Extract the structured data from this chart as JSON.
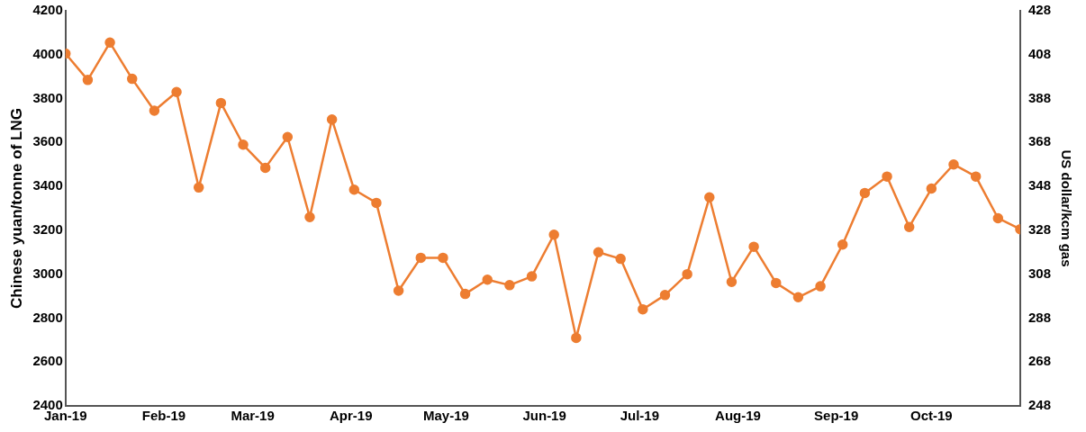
{
  "chart_data": {
    "type": "line",
    "ylabel": "Chinese yuan/tonne of LNG",
    "y2label": "US dollar/kcm gas",
    "x": [
      "2019-01-01",
      "2019-01-08",
      "2019-01-15",
      "2019-01-22",
      "2019-01-29",
      "2019-02-05",
      "2019-02-12",
      "2019-02-19",
      "2019-02-26",
      "2019-03-05",
      "2019-03-12",
      "2019-03-19",
      "2019-03-26",
      "2019-04-02",
      "2019-04-09",
      "2019-04-16",
      "2019-04-23",
      "2019-04-30",
      "2019-05-07",
      "2019-05-14",
      "2019-05-21",
      "2019-05-28",
      "2019-06-04",
      "2019-06-11",
      "2019-06-18",
      "2019-06-25",
      "2019-07-02",
      "2019-07-09",
      "2019-07-16",
      "2019-07-23",
      "2019-07-30",
      "2019-08-06",
      "2019-08-13",
      "2019-08-20",
      "2019-08-27",
      "2019-09-03",
      "2019-09-10",
      "2019-09-17",
      "2019-09-24",
      "2019-10-01",
      "2019-10-08",
      "2019-10-15",
      "2019-10-22",
      "2019-10-29"
    ],
    "series": [
      {
        "color": "#ed7d31",
        "values": [
          4005,
          3885,
          4055,
          3890,
          3745,
          3830,
          3395,
          3780,
          3590,
          3485,
          3625,
          3260,
          3705,
          3385,
          3325,
          2925,
          3075,
          3075,
          2910,
          2975,
          2950,
          2990,
          3180,
          2710,
          3100,
          3070,
          2840,
          2905,
          3000,
          3350,
          2965,
          3125,
          2960,
          2895,
          2945,
          3135,
          3370,
          3445,
          3215,
          3390,
          3500,
          3445,
          3255,
          3205
        ]
      }
    ],
    "xlim": [
      "2019-01-01",
      "2019-10-29"
    ],
    "xticks": [
      {
        "value": "2019-01-01",
        "label": "Jan-19"
      },
      {
        "value": "2019-02-01",
        "label": "Feb-19"
      },
      {
        "value": "2019-03-01",
        "label": "Mar-19"
      },
      {
        "value": "2019-04-01",
        "label": "Apr-19"
      },
      {
        "value": "2019-05-01",
        "label": "May-19"
      },
      {
        "value": "2019-06-01",
        "label": "Jun-19"
      },
      {
        "value": "2019-07-01",
        "label": "Jul-19"
      },
      {
        "value": "2019-08-01",
        "label": "Aug-19"
      },
      {
        "value": "2019-09-01",
        "label": "Sep-19"
      },
      {
        "value": "2019-10-01",
        "label": "Oct-19"
      }
    ],
    "ylim": [
      2400,
      4200
    ],
    "yticks": [
      2400,
      2600,
      2800,
      3000,
      3200,
      3400,
      3600,
      3800,
      4000,
      4200
    ],
    "y2lim": [
      248,
      428
    ],
    "y2ticks": [
      248,
      268,
      288,
      308,
      328,
      348,
      368,
      388,
      408,
      428
    ],
    "grid": false,
    "legend": false,
    "marker": "circle",
    "line_style": "solid"
  }
}
